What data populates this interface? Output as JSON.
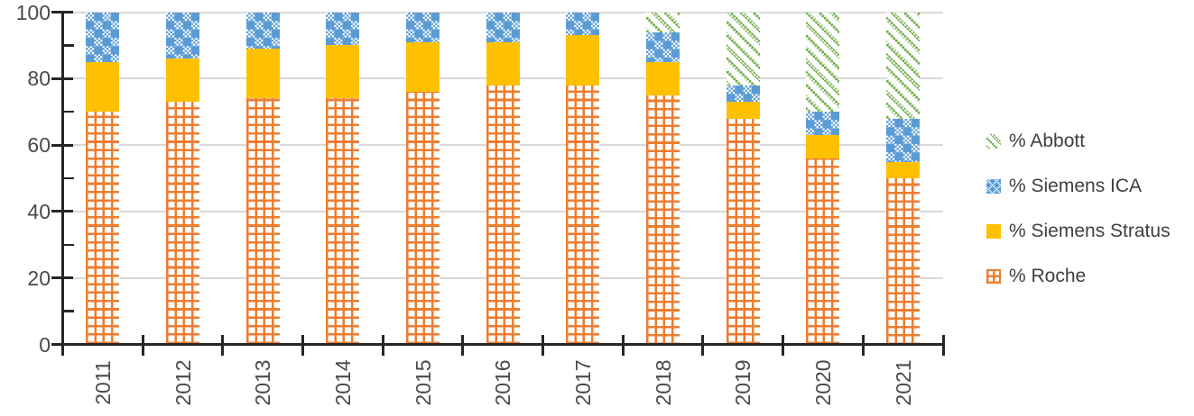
{
  "chart_data": {
    "type": "bar",
    "stacked": true,
    "title": "",
    "categories": [
      "2011",
      "2012",
      "2013",
      "2014",
      "2015",
      "2016",
      "2017",
      "2018",
      "2019",
      "2020",
      "2021"
    ],
    "series": [
      {
        "name": "% Roche",
        "key": "roche",
        "pattern": "grid",
        "color": "#ED7D31",
        "values": [
          70,
          73,
          74,
          74,
          76,
          78,
          78,
          75,
          68,
          56,
          50
        ]
      },
      {
        "name": "% Siemens Stratus",
        "key": "stratus",
        "pattern": "solid",
        "color": "#FFC000",
        "values": [
          15,
          13,
          15,
          16,
          15,
          13,
          15,
          10,
          5,
          7,
          5
        ]
      },
      {
        "name": "% Siemens ICA",
        "key": "ica",
        "pattern": "checker",
        "color": "#5B9BD5",
        "values": [
          15,
          14,
          11,
          10,
          9,
          9,
          7,
          9,
          5,
          7,
          13
        ]
      },
      {
        "name": "% Abbott",
        "key": "abbott",
        "pattern": "diagonal",
        "color": "#70AD47",
        "values": [
          0,
          0,
          0,
          0,
          0,
          0,
          0,
          6,
          22,
          30,
          32
        ]
      }
    ],
    "ylim": [
      0,
      100
    ],
    "yticks": [
      "0",
      "20",
      "40",
      "60",
      "80",
      "100"
    ],
    "grid": true,
    "legend": {
      "position": "right",
      "items": [
        "% Abbott",
        "% Siemens ICA",
        "% Siemens Stratus",
        "% Roche"
      ]
    }
  },
  "colors": {
    "roche": "#ED7D31",
    "stratus": "#FFC000",
    "ica": "#5B9BD5",
    "abbott": "#70AD47",
    "gridline": "#D9D9D9",
    "axis": "#262626",
    "axis_label": "#4A4A4A",
    "legend_text": "#404040",
    "background": "#FFFFFF"
  }
}
